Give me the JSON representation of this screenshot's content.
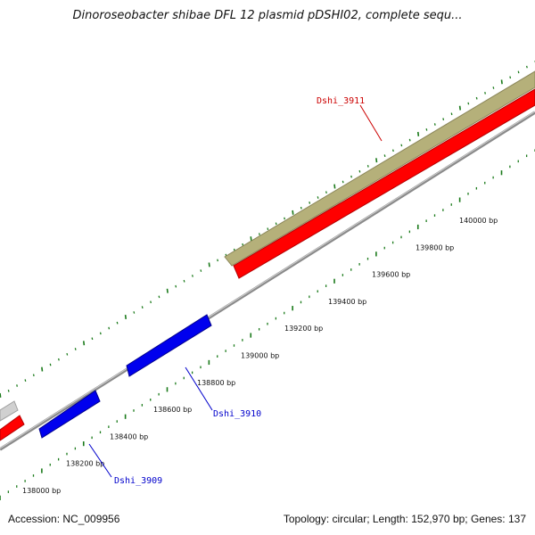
{
  "title": "Dinoroseobacter shibae DFL 12 plasmid pDSHI02, complete sequ...",
  "footer": {
    "accession": "Accession: NC_009956",
    "summary": "Topology: circular; Length: 152,970 bp; Genes: 137"
  },
  "colors": {
    "cds_forward": "#ff0000",
    "cds_reverse": "#0000ee",
    "gene_track": "#b5b07a",
    "backbone": "#7a7a7a",
    "ticks": "#1a7a1a",
    "label_forward": "#cc0000",
    "label_reverse": "#0000cc"
  },
  "ticks": [
    {
      "label": "138000 bp"
    },
    {
      "label": "138200 bp"
    },
    {
      "label": "138400 bp"
    },
    {
      "label": "138600 bp"
    },
    {
      "label": "138800 bp"
    },
    {
      "label": "139000 bp"
    },
    {
      "label": "139200 bp"
    },
    {
      "label": "139400 bp"
    },
    {
      "label": "139600 bp"
    },
    {
      "label": "139800 bp"
    },
    {
      "label": "140000 bp"
    }
  ],
  "genes": [
    {
      "name": "Dshi_3911",
      "strand": "forward"
    },
    {
      "name": "Dshi_3910",
      "strand": "reverse"
    },
    {
      "name": "Dshi_3909",
      "strand": "reverse"
    }
  ]
}
